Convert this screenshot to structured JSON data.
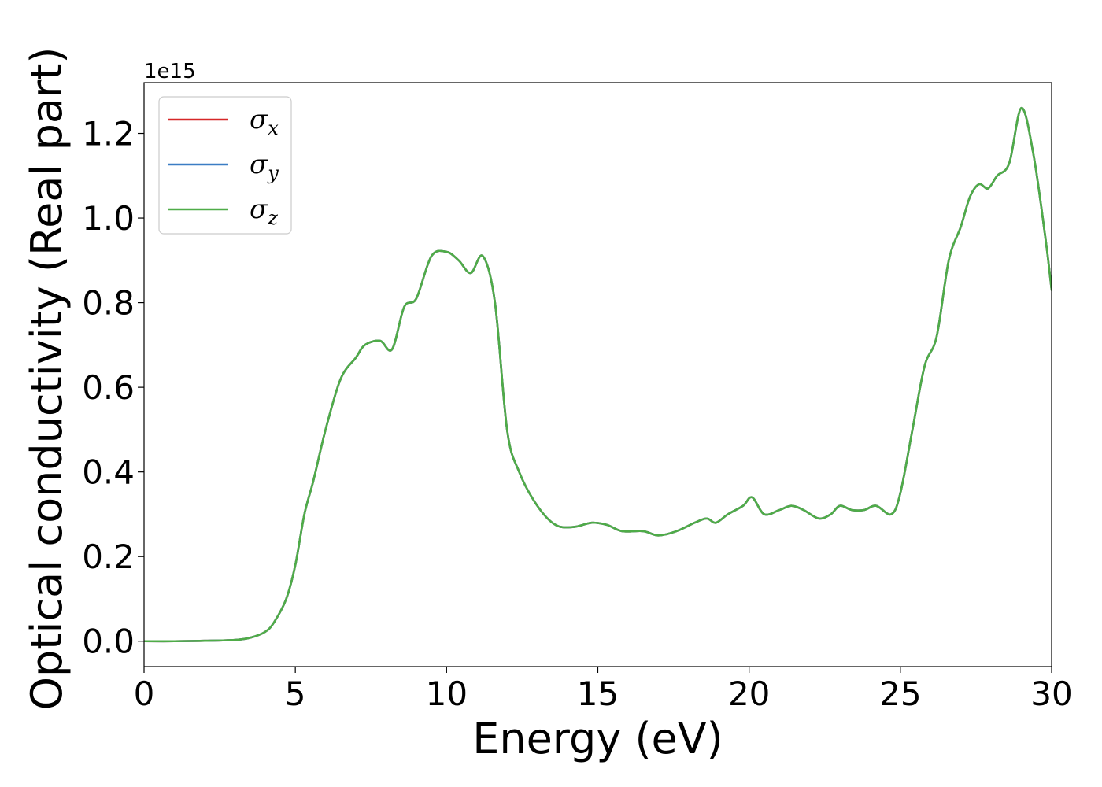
{
  "chart_data": {
    "type": "line",
    "title": "",
    "xlabel": "Energy (eV)",
    "ylabel": "Optical conductivity (Real part)",
    "y_offset_label": "1e15",
    "y_multiplier": 1000000000000000.0,
    "xlim": [
      0,
      30
    ],
    "ylim": [
      -0.06,
      1.32
    ],
    "xticks": [
      0,
      5,
      10,
      15,
      20,
      25,
      30
    ],
    "xtick_labels": [
      "0",
      "5",
      "10",
      "15",
      "20",
      "25",
      "30"
    ],
    "yticks": [
      0.0,
      0.2,
      0.4,
      0.6,
      0.8,
      1.0,
      1.2
    ],
    "ytick_labels": [
      "0.0",
      "0.2",
      "0.4",
      "0.6",
      "0.8",
      "1.0",
      "1.2"
    ],
    "grid": false,
    "legend_position": "top-left",
    "series": [
      {
        "name": "σ",
        "sub": "x",
        "color": "#d62728",
        "use_shared_y": true
      },
      {
        "name": "σ",
        "sub": "y",
        "color": "#3b7dc4",
        "use_shared_y": true
      },
      {
        "name": "σ",
        "sub": "z",
        "color": "#4fac48",
        "use_shared_y": true
      }
    ],
    "x": [
      0,
      1,
      2,
      3,
      3.5,
      4,
      4.3,
      4.7,
      5.0,
      5.3,
      5.6,
      6.0,
      6.5,
      7.0,
      7.3,
      7.8,
      8.2,
      8.6,
      9.0,
      9.5,
      10.0,
      10.4,
      10.8,
      11.2,
      11.6,
      12.0,
      12.4,
      13.0,
      13.6,
      14.2,
      14.8,
      15.3,
      15.8,
      16.5,
      17.0,
      17.6,
      18.2,
      18.6,
      18.9,
      19.3,
      19.8,
      20.1,
      20.5,
      21.0,
      21.4,
      21.8,
      22.3,
      22.7,
      23.0,
      23.4,
      23.8,
      24.2,
      24.7,
      25.0,
      25.4,
      25.8,
      26.2,
      26.6,
      27.0,
      27.3,
      27.6,
      27.9,
      28.2,
      28.6,
      29.0,
      29.4,
      29.8,
      30.0
    ],
    "y": [
      0.0,
      0.0,
      0.001,
      0.003,
      0.008,
      0.022,
      0.045,
      0.1,
      0.18,
      0.3,
      0.38,
      0.5,
      0.62,
      0.67,
      0.7,
      0.71,
      0.69,
      0.79,
      0.81,
      0.91,
      0.92,
      0.9,
      0.87,
      0.91,
      0.8,
      0.5,
      0.4,
      0.32,
      0.275,
      0.27,
      0.28,
      0.275,
      0.26,
      0.26,
      0.25,
      0.26,
      0.28,
      0.29,
      0.28,
      0.3,
      0.32,
      0.34,
      0.3,
      0.31,
      0.32,
      0.31,
      0.29,
      0.3,
      0.32,
      0.31,
      0.31,
      0.32,
      0.3,
      0.35,
      0.5,
      0.65,
      0.72,
      0.9,
      0.98,
      1.05,
      1.08,
      1.07,
      1.1,
      1.13,
      1.26,
      1.15,
      0.95,
      0.83
    ]
  }
}
